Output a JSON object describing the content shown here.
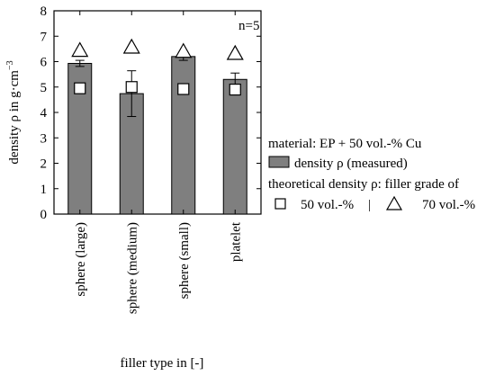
{
  "chart_data": {
    "type": "bar",
    "title": "",
    "annotation": "n=5",
    "xlabel": "filler type in [-]",
    "ylabel": "density ρ in g·cm⁻³",
    "ylim": [
      0,
      8
    ],
    "yticks": [
      0,
      1,
      2,
      3,
      4,
      5,
      6,
      7,
      8
    ],
    "grid": false,
    "legend_position": "right",
    "categories": [
      "sphere (large)",
      "sphere (medium)",
      "sphere (small)",
      "platelet"
    ],
    "series": [
      {
        "name": "density ρ (measured)",
        "kind": "bar",
        "color": "#7f7f7f",
        "values": [
          5.93,
          4.74,
          6.2,
          5.3
        ],
        "error": [
          0.12,
          0.9,
          0.15,
          0.25
        ]
      },
      {
        "name": "50 vol.-%",
        "kind": "marker",
        "marker": "square",
        "values": [
          4.95,
          5.0,
          4.92,
          4.9
        ]
      },
      {
        "name": "70 vol.-%",
        "kind": "marker",
        "marker": "triangle",
        "values": [
          6.42,
          6.55,
          6.38,
          6.3
        ]
      }
    ],
    "legend": {
      "title": "material: EP + 50 vol.-% Cu",
      "measured_label": "density ρ (measured)",
      "theoretical_label": "theoretical density ρ: filler grade of",
      "low_label": "50 vol.-%",
      "separator": "|",
      "high_label": "70 vol.-%"
    }
  }
}
